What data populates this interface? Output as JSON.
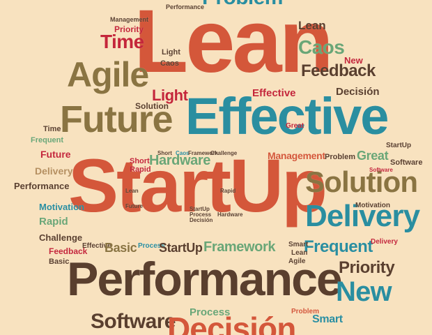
{
  "palette": {
    "orange": "#d4573a",
    "teal": "#2a8ea0",
    "brown": "#5a3f2e",
    "olive": "#8a7442",
    "green": "#6aa676",
    "red": "#c4263a",
    "sand": "#b58f5f",
    "cream": "#f8e2bf"
  },
  "words": [
    {
      "text": "Problem",
      "color": "teal"
    },
    {
      "text": "Lean",
      "color": "orange"
    },
    {
      "text": "Management",
      "color": "brown"
    },
    {
      "text": "Performance",
      "color": "brown"
    },
    {
      "text": "Priority",
      "color": "red"
    },
    {
      "text": "Time",
      "color": "red"
    },
    {
      "text": "Lean",
      "color": "brown"
    },
    {
      "text": "Caos",
      "color": "green"
    },
    {
      "text": "New",
      "color": "red"
    },
    {
      "text": "Light",
      "color": "brown"
    },
    {
      "text": "Caos",
      "color": "brown"
    },
    {
      "text": "Feedback",
      "color": "brown"
    },
    {
      "text": "Agile",
      "color": "olive"
    },
    {
      "text": "Light",
      "color": "red"
    },
    {
      "text": "Effective",
      "color": "red"
    },
    {
      "text": "Decisión",
      "color": "brown"
    },
    {
      "text": "Effective",
      "color": "teal"
    },
    {
      "text": "Solution",
      "color": "brown"
    },
    {
      "text": "Future",
      "color": "olive"
    },
    {
      "text": "Time",
      "color": "brown"
    },
    {
      "text": "Frequent",
      "color": "green"
    },
    {
      "text": "Future",
      "color": "red"
    },
    {
      "text": "Delivery",
      "color": "sand"
    },
    {
      "text": "Performance",
      "color": "brown"
    },
    {
      "text": "StartUp",
      "color": "orange"
    },
    {
      "text": "Short",
      "color": "red"
    },
    {
      "text": "Rapid",
      "color": "red"
    },
    {
      "text": "Hardware",
      "color": "green"
    },
    {
      "text": "Management",
      "color": "orange"
    },
    {
      "text": "Problem",
      "color": "brown"
    },
    {
      "text": "Great",
      "color": "green"
    },
    {
      "text": "StartUp",
      "color": "brown"
    },
    {
      "text": "Software",
      "color": "brown"
    },
    {
      "text": "Solution",
      "color": "olive"
    },
    {
      "text": "Delivery",
      "color": "teal"
    },
    {
      "text": "Motivation",
      "color": "teal"
    },
    {
      "text": "Rapid",
      "color": "green"
    },
    {
      "text": "Challenge",
      "color": "brown"
    },
    {
      "text": "Feedback",
      "color": "red"
    },
    {
      "text": "Basic",
      "color": "brown"
    },
    {
      "text": "Effective",
      "color": "brown"
    },
    {
      "text": "Basic",
      "color": "olive"
    },
    {
      "text": "Process",
      "color": "teal"
    },
    {
      "text": "StartUp",
      "color": "brown"
    },
    {
      "text": "Framework",
      "color": "green"
    },
    {
      "text": "Frequent",
      "color": "teal"
    },
    {
      "text": "Smart",
      "color": "brown"
    },
    {
      "text": "Lean",
      "color": "brown"
    },
    {
      "text": "Agile",
      "color": "brown"
    },
    {
      "text": "Motivation",
      "color": "brown"
    },
    {
      "text": "Delivery",
      "color": "red"
    },
    {
      "text": "Priority",
      "color": "brown"
    },
    {
      "text": "Performance",
      "color": "brown"
    },
    {
      "text": "New",
      "color": "teal"
    },
    {
      "text": "Software",
      "color": "brown"
    },
    {
      "text": "Process",
      "color": "green"
    },
    {
      "text": "Decisión",
      "color": "orange"
    },
    {
      "text": "Problem",
      "color": "orange"
    },
    {
      "text": "Smart",
      "color": "teal"
    },
    {
      "text": "Short",
      "color": "brown"
    },
    {
      "text": "Caos",
      "color": "teal"
    },
    {
      "text": "Framework",
      "color": "brown"
    },
    {
      "text": "Challenge",
      "color": "brown"
    },
    {
      "text": "Rapid",
      "color": "brown"
    },
    {
      "text": "Hardware",
      "color": "brown"
    },
    {
      "text": "Future",
      "color": "brown"
    },
    {
      "text": "StartUp",
      "color": "brown"
    },
    {
      "text": "Process",
      "color": "brown"
    },
    {
      "text": "Decisión",
      "color": "brown"
    },
    {
      "text": "Lean",
      "color": "brown"
    },
    {
      "text": "Great",
      "color": "red"
    },
    {
      "text": "Software",
      "color": "red"
    }
  ]
}
